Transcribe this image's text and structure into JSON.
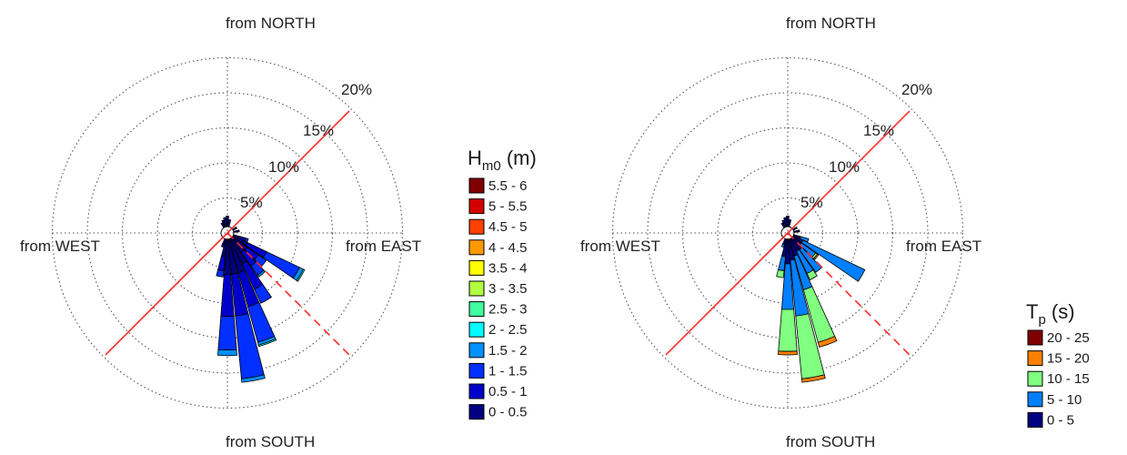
{
  "chart_data": [
    {
      "type": "windrose",
      "direction_labels": {
        "north": "from NORTH",
        "east": "from EAST",
        "south": "from SOUTH",
        "west": "from WEST"
      },
      "ring_labels": [
        "5%",
        "10%",
        "15%",
        "20%"
      ],
      "ring_values": [
        5,
        10,
        15,
        20,
        25
      ],
      "legend": {
        "title_main": "H",
        "title_sub": "m0",
        "title_unit": " (m)",
        "items": [
          {
            "label": "5.5 - 6",
            "color": "#800000"
          },
          {
            "label": "5 - 5.5",
            "color": "#d40000"
          },
          {
            "label": "4.5 - 5",
            "color": "#ff4000"
          },
          {
            "label": "4 - 4.5",
            "color": "#ff9900"
          },
          {
            "label": "3.5 - 4",
            "color": "#ffff00"
          },
          {
            "label": "3 - 3.5",
            "color": "#b0ff40"
          },
          {
            "label": "2.5 - 3",
            "color": "#40ffa0"
          },
          {
            "label": "2 - 2.5",
            "color": "#00ffff"
          },
          {
            "label": "1.5 - 2",
            "color": "#0090ff"
          },
          {
            "label": "1 - 1.5",
            "color": "#0030ff"
          },
          {
            "label": "0.5 - 1",
            "color": "#0000cc"
          },
          {
            "label": "0 - 0.5",
            "color": "#000080"
          }
        ]
      },
      "reference_lines": [
        {
          "direction_deg": 45,
          "style": "solid",
          "color": "#ff2a2a"
        },
        {
          "direction_deg": 225,
          "style": "solid",
          "color": "#ff2a2a"
        },
        {
          "direction_deg": 135,
          "style": "dashed",
          "color": "#ff2a2a"
        }
      ],
      "sectors": [
        {
          "direction_deg": 110,
          "segments": [
            {
              "bin": "0 - 0.5",
              "value": 1.0
            },
            {
              "bin": "0.5 - 1",
              "value": 0.8
            },
            {
              "bin": "1 - 1.5",
              "value": 0.4
            }
          ]
        },
        {
          "direction_deg": 120,
          "segments": [
            {
              "bin": "0 - 0.5",
              "value": 2.3
            },
            {
              "bin": "0.5 - 1",
              "value": 3.0
            },
            {
              "bin": "1 - 1.5",
              "value": 5.2
            },
            {
              "bin": "1.5 - 2",
              "value": 0.6
            },
            {
              "bin": "2 - 2.5",
              "value": 0.2
            }
          ]
        },
        {
          "direction_deg": 130,
          "segments": [
            {
              "bin": "0 - 0.5",
              "value": 2.5
            },
            {
              "bin": "0.5 - 1",
              "value": 2.0
            },
            {
              "bin": "1 - 1.5",
              "value": 1.4
            }
          ]
        },
        {
          "direction_deg": 140,
          "segments": [
            {
              "bin": "0 - 0.5",
              "value": 2.5
            },
            {
              "bin": "0.5 - 1",
              "value": 2.4
            },
            {
              "bin": "1 - 1.5",
              "value": 1.6
            },
            {
              "bin": "1.5 - 2",
              "value": 0.3
            }
          ]
        },
        {
          "direction_deg": 150,
          "segments": [
            {
              "bin": "0 - 0.5",
              "value": 4.0
            },
            {
              "bin": "0.5 - 1",
              "value": 4.0
            },
            {
              "bin": "1 - 1.5",
              "value": 2.2
            }
          ]
        },
        {
          "direction_deg": 160,
          "segments": [
            {
              "bin": "0 - 0.5",
              "value": 5.0
            },
            {
              "bin": "0.5 - 1",
              "value": 5.0
            },
            {
              "bin": "1 - 1.5",
              "value": 5.3
            },
            {
              "bin": "1.5 - 2",
              "value": 0.4
            },
            {
              "bin": "2 - 2.5",
              "value": 0.2
            }
          ]
        },
        {
          "direction_deg": 170,
          "segments": [
            {
              "bin": "0 - 0.5",
              "value": 5.0
            },
            {
              "bin": "0.5 - 1",
              "value": 6.0
            },
            {
              "bin": "1 - 1.5",
              "value": 9.0
            },
            {
              "bin": "1.5 - 2",
              "value": 0.5
            }
          ]
        },
        {
          "direction_deg": 180,
          "segments": [
            {
              "bin": "0 - 0.5",
              "value": 5.0
            },
            {
              "bin": "0.5 - 1",
              "value": 6.0
            },
            {
              "bin": "1 - 1.5",
              "value": 4.8
            },
            {
              "bin": "1.5 - 2",
              "value": 0.8
            }
          ]
        },
        {
          "direction_deg": 190,
          "segments": [
            {
              "bin": "0 - 0.5",
              "value": 2.5
            },
            {
              "bin": "0.5 - 1",
              "value": 2.0
            },
            {
              "bin": "1 - 1.5",
              "value": 0.9
            }
          ]
        },
        {
          "direction_deg": 200,
          "segments": [
            {
              "bin": "0 - 0.5",
              "value": 0.8
            },
            {
              "bin": "0.5 - 1",
              "value": 0.4
            }
          ]
        },
        {
          "direction_deg": 330,
          "segments": [
            {
              "bin": "0 - 0.5",
              "value": 0.7
            }
          ]
        },
        {
          "direction_deg": 340,
          "segments": [
            {
              "bin": "0 - 0.5",
              "value": 1.0
            }
          ]
        },
        {
          "direction_deg": 350,
          "segments": [
            {
              "bin": "0 - 0.5",
              "value": 1.3
            }
          ]
        },
        {
          "direction_deg": 0,
          "segments": [
            {
              "bin": "0 - 0.5",
              "value": 1.5
            }
          ]
        },
        {
          "direction_deg": 10,
          "segments": [
            {
              "bin": "0 - 0.5",
              "value": 1.0
            }
          ]
        },
        {
          "direction_deg": 60,
          "segments": [
            {
              "bin": "0 - 0.5",
              "value": 0.6
            }
          ]
        },
        {
          "direction_deg": 80,
          "segments": [
            {
              "bin": "0 - 0.5",
              "value": 0.8
            }
          ]
        }
      ]
    },
    {
      "type": "windrose",
      "direction_labels": {
        "north": "from NORTH",
        "east": "from EAST",
        "south": "from SOUTH",
        "west": "from WEST"
      },
      "ring_labels": [
        "5%",
        "10%",
        "15%",
        "20%"
      ],
      "ring_values": [
        5,
        10,
        15,
        20,
        25
      ],
      "legend": {
        "title_main": "T",
        "title_sub": "p",
        "title_unit": " (s)",
        "items": [
          {
            "label": "20 - 25",
            "color": "#800000"
          },
          {
            "label": "15 - 20",
            "color": "#ff8000"
          },
          {
            "label": "10 - 15",
            "color": "#80ff80"
          },
          {
            "label": "5 - 10",
            "color": "#0080ff"
          },
          {
            "label": "0 - 5",
            "color": "#000080"
          }
        ]
      },
      "reference_lines": [
        {
          "direction_deg": 45,
          "style": "solid",
          "color": "#ff2a2a"
        },
        {
          "direction_deg": 225,
          "style": "solid",
          "color": "#ff2a2a"
        },
        {
          "direction_deg": 135,
          "style": "dashed",
          "color": "#ff2a2a"
        }
      ],
      "sectors": [
        {
          "direction_deg": 110,
          "segments": [
            {
              "bin": "0 - 5",
              "value": 1.0
            },
            {
              "bin": "5 - 10",
              "value": 1.2
            }
          ]
        },
        {
          "direction_deg": 120,
          "segments": [
            {
              "bin": "0 - 5",
              "value": 1.5
            },
            {
              "bin": "5 - 10",
              "value": 9.8
            }
          ]
        },
        {
          "direction_deg": 130,
          "segments": [
            {
              "bin": "0 - 5",
              "value": 1.5
            },
            {
              "bin": "5 - 10",
              "value": 2.5
            },
            {
              "bin": "10 - 15",
              "value": 0.3
            },
            {
              "bin": "15 - 20",
              "value": 0.2
            }
          ]
        },
        {
          "direction_deg": 140,
          "segments": [
            {
              "bin": "0 - 5",
              "value": 2.0
            },
            {
              "bin": "5 - 10",
              "value": 4.0
            }
          ]
        },
        {
          "direction_deg": 150,
          "segments": [
            {
              "bin": "0 - 5",
              "value": 2.0
            },
            {
              "bin": "5 - 10",
              "value": 3.5
            },
            {
              "bin": "10 - 15",
              "value": 1.0
            }
          ]
        },
        {
          "direction_deg": 160,
          "segments": [
            {
              "bin": "0 - 5",
              "value": 2.5
            },
            {
              "bin": "5 - 10",
              "value": 5.0
            },
            {
              "bin": "10 - 15",
              "value": 7.8
            },
            {
              "bin": "15 - 20",
              "value": 0.7
            }
          ]
        },
        {
          "direction_deg": 170,
          "segments": [
            {
              "bin": "0 - 5",
              "value": 3.0
            },
            {
              "bin": "5 - 10",
              "value": 8.0
            },
            {
              "bin": "10 - 15",
              "value": 9.0
            },
            {
              "bin": "15 - 20",
              "value": 0.5
            }
          ]
        },
        {
          "direction_deg": 180,
          "segments": [
            {
              "bin": "0 - 5",
              "value": 3.5
            },
            {
              "bin": "5 - 10",
              "value": 6.5
            },
            {
              "bin": "10 - 15",
              "value": 6.0
            },
            {
              "bin": "15 - 20",
              "value": 0.5
            }
          ]
        },
        {
          "direction_deg": 190,
          "segments": [
            {
              "bin": "0 - 5",
              "value": 2.5
            },
            {
              "bin": "5 - 10",
              "value": 2.0
            },
            {
              "bin": "10 - 15",
              "value": 1.0
            }
          ]
        },
        {
          "direction_deg": 200,
          "segments": [
            {
              "bin": "0 - 5",
              "value": 0.8
            },
            {
              "bin": "5 - 10",
              "value": 0.4
            }
          ]
        },
        {
          "direction_deg": 330,
          "segments": [
            {
              "bin": "0 - 5",
              "value": 0.7
            }
          ]
        },
        {
          "direction_deg": 340,
          "segments": [
            {
              "bin": "0 - 5",
              "value": 1.0
            }
          ]
        },
        {
          "direction_deg": 350,
          "segments": [
            {
              "bin": "0 - 5",
              "value": 1.3
            }
          ]
        },
        {
          "direction_deg": 0,
          "segments": [
            {
              "bin": "0 - 5",
              "value": 1.5
            }
          ]
        },
        {
          "direction_deg": 10,
          "segments": [
            {
              "bin": "0 - 5",
              "value": 1.0
            }
          ]
        },
        {
          "direction_deg": 60,
          "segments": [
            {
              "bin": "0 - 5",
              "value": 0.6
            }
          ]
        },
        {
          "direction_deg": 80,
          "segments": [
            {
              "bin": "0 - 5",
              "value": 0.8
            }
          ]
        }
      ]
    }
  ]
}
